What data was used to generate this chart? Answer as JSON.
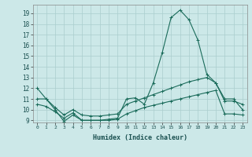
{
  "xlabel": "Humidex (Indice chaleur)",
  "background_color": "#cce8e8",
  "grid_color": "#aacece",
  "line_color": "#1a6b5a",
  "xlim": [
    -0.5,
    23.5
  ],
  "ylim": [
    8.8,
    19.8
  ],
  "yticks": [
    9,
    10,
    11,
    12,
    13,
    14,
    15,
    16,
    17,
    18,
    19
  ],
  "xticks": [
    0,
    1,
    2,
    3,
    4,
    5,
    6,
    7,
    8,
    9,
    10,
    11,
    12,
    13,
    14,
    15,
    16,
    17,
    18,
    19,
    20,
    21,
    22,
    23
  ],
  "series": [
    {
      "x": [
        0,
        1,
        2,
        3,
        4,
        5,
        6,
        7,
        8,
        9,
        10,
        11,
        12,
        13,
        14,
        15,
        16,
        17,
        18,
        19,
        20,
        21,
        22,
        23
      ],
      "y": [
        12.0,
        11.0,
        10.0,
        8.9,
        9.5,
        9.0,
        9.0,
        9.0,
        9.1,
        9.2,
        11.0,
        11.1,
        10.5,
        12.5,
        15.3,
        18.6,
        19.3,
        18.4,
        16.5,
        13.3,
        12.5,
        11.0,
        11.0,
        10.0
      ]
    },
    {
      "x": [
        0,
        1,
        2,
        3,
        4,
        5,
        6,
        7,
        8,
        9,
        10,
        11,
        12,
        13,
        14,
        15,
        16,
        17,
        18,
        19,
        20,
        21,
        22,
        23
      ],
      "y": [
        11.0,
        11.0,
        10.2,
        9.5,
        10.0,
        9.5,
        9.4,
        9.4,
        9.5,
        9.6,
        10.5,
        10.8,
        11.1,
        11.4,
        11.7,
        12.0,
        12.3,
        12.6,
        12.8,
        13.0,
        12.5,
        10.8,
        10.8,
        10.5
      ]
    },
    {
      "x": [
        0,
        1,
        2,
        3,
        4,
        5,
        6,
        7,
        8,
        9,
        10,
        11,
        12,
        13,
        14,
        15,
        16,
        17,
        18,
        19,
        20,
        21,
        22,
        23
      ],
      "y": [
        10.5,
        10.3,
        9.8,
        9.2,
        9.7,
        9.0,
        9.0,
        9.0,
        9.0,
        9.1,
        9.6,
        9.9,
        10.2,
        10.4,
        10.6,
        10.8,
        11.0,
        11.2,
        11.4,
        11.6,
        11.8,
        9.6,
        9.6,
        9.5
      ]
    }
  ]
}
